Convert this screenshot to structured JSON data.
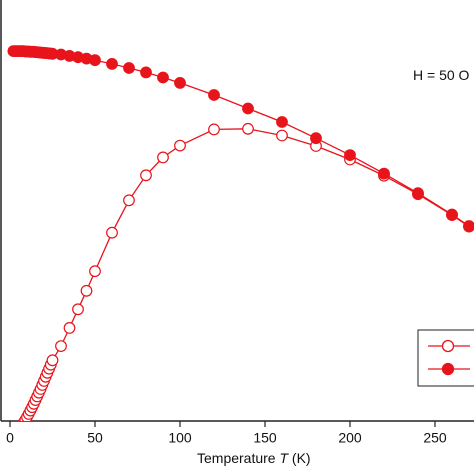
{
  "chart_data": {
    "type": "line",
    "xlabel_prefix": "Temperature ",
    "xlabel_var": "T",
    "xlabel_unit": " (K)",
    "x_ticks": [
      "0",
      "50",
      "100",
      "150",
      "200",
      "250"
    ],
    "xlim": [
      0,
      270
    ],
    "annotation": "H = 50 O",
    "legend_position": "bottom-right",
    "grid": false,
    "color": "#e8141c",
    "series": [
      {
        "marker": "open-circle",
        "points": [
          [
            2,
            0.112
          ],
          [
            3,
            0.116
          ],
          [
            4,
            0.121
          ],
          [
            5,
            0.127
          ],
          [
            6,
            0.134
          ],
          [
            7,
            0.141
          ],
          [
            8,
            0.149
          ],
          [
            9,
            0.157
          ],
          [
            10,
            0.166
          ],
          [
            11,
            0.175
          ],
          [
            12,
            0.185
          ],
          [
            13,
            0.195
          ],
          [
            14,
            0.205
          ],
          [
            15,
            0.216
          ],
          [
            16,
            0.227
          ],
          [
            17,
            0.238
          ],
          [
            18,
            0.249
          ],
          [
            19,
            0.261
          ],
          [
            20,
            0.273
          ],
          [
            21,
            0.285
          ],
          [
            22,
            0.297
          ],
          [
            23,
            0.309
          ],
          [
            24,
            0.321
          ],
          [
            25,
            0.334
          ],
          [
            30,
            0.376
          ],
          [
            35,
            0.43
          ],
          [
            40,
            0.485
          ],
          [
            45,
            0.54
          ],
          [
            50,
            0.598
          ],
          [
            60,
            0.712
          ],
          [
            70,
            0.808
          ],
          [
            80,
            0.882
          ],
          [
            90,
            0.935
          ],
          [
            100,
            0.97
          ],
          [
            120,
            1.018
          ],
          [
            140,
            1.02
          ],
          [
            160,
            1.0
          ],
          [
            180,
            0.969
          ],
          [
            200,
            0.929
          ],
          [
            220,
            0.881
          ],
          [
            240,
            0.826
          ],
          [
            260,
            0.764
          ],
          [
            270,
            0.73
          ]
        ]
      },
      {
        "marker": "filled-circle",
        "points": [
          [
            2,
            1.25
          ],
          [
            3,
            1.25
          ],
          [
            4,
            1.25
          ],
          [
            5,
            1.25
          ],
          [
            6,
            1.25
          ],
          [
            7,
            1.25
          ],
          [
            8,
            1.25
          ],
          [
            9,
            1.249
          ],
          [
            10,
            1.249
          ],
          [
            11,
            1.249
          ],
          [
            12,
            1.248
          ],
          [
            13,
            1.248
          ],
          [
            14,
            1.248
          ],
          [
            15,
            1.247
          ],
          [
            16,
            1.247
          ],
          [
            17,
            1.246
          ],
          [
            18,
            1.246
          ],
          [
            19,
            1.245
          ],
          [
            20,
            1.245
          ],
          [
            21,
            1.244
          ],
          [
            22,
            1.244
          ],
          [
            23,
            1.243
          ],
          [
            24,
            1.243
          ],
          [
            25,
            1.242
          ],
          [
            30,
            1.24
          ],
          [
            35,
            1.236
          ],
          [
            40,
            1.232
          ],
          [
            45,
            1.228
          ],
          [
            50,
            1.223
          ],
          [
            60,
            1.212
          ],
          [
            70,
            1.2
          ],
          [
            80,
            1.187
          ],
          [
            90,
            1.172
          ],
          [
            100,
            1.156
          ],
          [
            120,
            1.12
          ],
          [
            140,
            1.08
          ],
          [
            160,
            1.04
          ],
          [
            180,
            0.992
          ],
          [
            200,
            0.942
          ],
          [
            220,
            0.887
          ],
          [
            240,
            0.829
          ],
          [
            260,
            0.766
          ],
          [
            270,
            0.732
          ]
        ]
      }
    ]
  }
}
